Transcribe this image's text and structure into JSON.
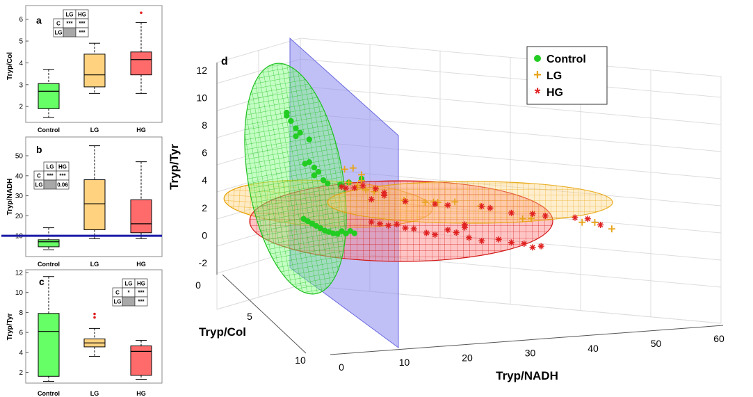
{
  "colors": {
    "control": "#66ff66",
    "lg": "#ffd27f",
    "hg": "#ff6b6b",
    "control_marker": "#22cc22",
    "lg_marker": "#e8a317",
    "hg_marker": "#e02020",
    "threshold": "#1a1aa8",
    "plane": "#8c8cf0"
  },
  "chart_data": [
    {
      "panel": "a",
      "type": "box",
      "categories": [
        "Control",
        "LG",
        "HG"
      ],
      "ylabel": "Tryp/Col",
      "ylim": [
        1.4,
        6.5
      ],
      "yticks": [
        "2",
        "3",
        "4",
        "5",
        "6"
      ],
      "ytick_values": [
        2,
        3,
        4,
        5,
        6
      ],
      "boxes": [
        {
          "name": "Control",
          "min": 1.5,
          "q1": 1.9,
          "median": 2.7,
          "q3": 3.05,
          "max": 3.7,
          "outliers": []
        },
        {
          "name": "LG",
          "min": 2.6,
          "q1": 2.9,
          "median": 3.45,
          "q3": 4.4,
          "max": 4.9,
          "outliers": []
        },
        {
          "name": "HG",
          "min": 2.6,
          "q1": 3.45,
          "median": 4.15,
          "q3": 4.5,
          "max": 5.85,
          "outliers": [
            6.3
          ]
        }
      ],
      "sig_table": {
        "cols": [
          "LG",
          "HG"
        ],
        "rows": [
          {
            "label": "C",
            "cells": [
              "***",
              "***"
            ]
          },
          {
            "label": "LG",
            "cells": [
              "",
              "***"
            ]
          }
        ]
      }
    },
    {
      "panel": "b",
      "type": "box",
      "categories": [
        "Control",
        "LG",
        "HG"
      ],
      "ylabel": "Tryp/NADH",
      "ylim": [
        1,
        58
      ],
      "yticks": [
        "10",
        "20",
        "30",
        "40",
        "50"
      ],
      "ytick_values": [
        10,
        20,
        30,
        40,
        50
      ],
      "threshold": 10,
      "boxes": [
        {
          "name": "Control",
          "min": 3,
          "q1": 4.5,
          "median": 7,
          "q3": 8,
          "max": 14,
          "outliers": []
        },
        {
          "name": "LG",
          "min": 8.5,
          "q1": 13,
          "median": 26,
          "q3": 38,
          "max": 55,
          "outliers": []
        },
        {
          "name": "HG",
          "min": 8.5,
          "q1": 11.5,
          "median": 16,
          "q3": 28,
          "max": 47,
          "outliers": []
        }
      ],
      "sig_table": {
        "cols": [
          "LG",
          "HG"
        ],
        "rows": [
          {
            "label": "C",
            "cells": [
              "***",
              "***"
            ]
          },
          {
            "label": "LG",
            "cells": [
              "",
              "0.06"
            ]
          }
        ]
      }
    },
    {
      "panel": "c",
      "type": "box",
      "categories": [
        "Control",
        "LG",
        "HG"
      ],
      "ylabel": "Tryp/Tyr",
      "ylim": [
        1.2,
        12
      ],
      "yticks": [
        "2",
        "4",
        "6",
        "8",
        "10",
        "12"
      ],
      "ytick_values": [
        2,
        4,
        6,
        8,
        10,
        12
      ],
      "boxes": [
        {
          "name": "Control",
          "min": 1.1,
          "q1": 1.6,
          "median": 6.1,
          "q3": 7.9,
          "max": 11.6,
          "outliers": []
        },
        {
          "name": "LG",
          "min": 3.6,
          "q1": 4.55,
          "median": 4.95,
          "q3": 5.35,
          "max": 6.4,
          "outliers": [
            7.5,
            7.85
          ]
        },
        {
          "name": "HG",
          "min": 1.3,
          "q1": 1.7,
          "median": 4.1,
          "q3": 4.65,
          "max": 5.2,
          "outliers": []
        }
      ],
      "sig_table": {
        "cols": [
          "LG",
          "HG"
        ],
        "rows": [
          {
            "label": "C",
            "cells": [
              "*",
              "***"
            ]
          },
          {
            "label": "LG",
            "cells": [
              "",
              "***"
            ]
          }
        ]
      }
    },
    {
      "panel": "d",
      "type": "scatter3d",
      "xlabel": "Tryp/NADH",
      "ylabel": "Tryp/Col",
      "zlabel": "Tryp/Tyr",
      "xticks": [
        "0",
        "10",
        "20",
        "30",
        "40",
        "50",
        "60"
      ],
      "xtick_values": [
        0,
        10,
        20,
        30,
        40,
        50,
        60
      ],
      "yticks": [
        "0",
        "5",
        "10"
      ],
      "ytick_values": [
        0,
        5,
        10
      ],
      "zticks": [
        "-2",
        "0",
        "2",
        "4",
        "6",
        "8",
        "10",
        "12"
      ],
      "ztick_values": [
        -2,
        0,
        2,
        4,
        6,
        8,
        10,
        12
      ],
      "legend": {
        "position": "top-right",
        "entries": [
          "Control",
          "LG",
          "HG"
        ],
        "markers": [
          "●",
          "+",
          "*"
        ]
      },
      "threshold_plane_x": 10,
      "series": [
        {
          "name": "Control",
          "marker": "circle",
          "points": [
            [
              3,
              2,
              10.6
            ],
            [
              3,
              2,
              10.3
            ],
            [
              4,
              2,
              9.8
            ],
            [
              5,
              2.5,
              9.2
            ],
            [
              6,
              2.5,
              8.8
            ],
            [
              5,
              2.5,
              8.4
            ],
            [
              8,
              3,
              8.3
            ],
            [
              8,
              3,
              6
            ],
            [
              7,
              3,
              5.8
            ],
            [
              9,
              3.5,
              5.6
            ],
            [
              10,
              3.5,
              5.2
            ],
            [
              9,
              3.5,
              4.8
            ],
            [
              11,
              4,
              4.5
            ],
            [
              12,
              4,
              4.2
            ],
            [
              15,
              4,
              4.2
            ],
            [
              17,
              4,
              4.5
            ],
            [
              20,
              4,
              5
            ],
            [
              6,
              5,
              0.6
            ],
            [
              7,
              5,
              0.4
            ],
            [
              8,
              5,
              0.2
            ],
            [
              9,
              5,
              0
            ],
            [
              10,
              5,
              -0.2
            ],
            [
              11,
              5,
              -0.4
            ],
            [
              12,
              5,
              -0.5
            ],
            [
              13,
              5,
              -0.6
            ],
            [
              14,
              5,
              -0.6
            ],
            [
              15,
              5,
              -0.3
            ],
            [
              16,
              5,
              -0.5
            ],
            [
              17,
              5,
              -0.2
            ],
            [
              18,
              5,
              -0.4
            ]
          ]
        },
        {
          "name": "LG",
          "marker": "plus",
          "points": [
            [
              18,
              4,
              6
            ],
            [
              16,
              4,
              5.8
            ],
            [
              20,
              4,
              5.4
            ],
            [
              20,
              4,
              4.8
            ],
            [
              17,
              4,
              4.5
            ],
            [
              19,
              4,
              4.3
            ],
            [
              19,
              4,
              4.1
            ],
            [
              21,
              4,
              3.9
            ],
            [
              23,
              4,
              3.8
            ],
            [
              30,
              4,
              3.2
            ],
            [
              35,
              4,
              3.2
            ],
            [
              37,
              4,
              3.3
            ],
            [
              38,
              4,
              3.3
            ],
            [
              42,
              4,
              3.5
            ],
            [
              48,
              4,
              3.3
            ],
            [
              58,
              4,
              2.4
            ],
            [
              60,
              4,
              2.5
            ],
            [
              72,
              4,
              2.6
            ],
            [
              75,
              4,
              2.7
            ],
            [
              79,
              4,
              2.2
            ]
          ]
        },
        {
          "name": "HG",
          "marker": "star",
          "points": [
            [
              15,
              5,
              4.2
            ],
            [
              16,
              5,
              4.1
            ],
            [
              18,
              5,
              4.2
            ],
            [
              20,
              5,
              4.5
            ],
            [
              23,
              5,
              4.3
            ],
            [
              25,
              5,
              4
            ],
            [
              25,
              5,
              3.7
            ],
            [
              22,
              5,
              3.2
            ],
            [
              30,
              5,
              3.3
            ],
            [
              37,
              5,
              3.3
            ],
            [
              40,
              5,
              3.3
            ],
            [
              48,
              5,
              3.5
            ],
            [
              50,
              5,
              3.4
            ],
            [
              55,
              5,
              3.1
            ],
            [
              60,
              5,
              3.2
            ],
            [
              63,
              5,
              3.1
            ],
            [
              70,
              5,
              3.2
            ],
            [
              73,
              5,
              3.2
            ],
            [
              76,
              5,
              2.7
            ],
            [
              44,
              5,
              1.5
            ],
            [
              44,
              5,
              1.2
            ],
            [
              22,
              5,
              0.9
            ],
            [
              24,
              5,
              0.8
            ],
            [
              26,
              5,
              0.7
            ],
            [
              28,
              5,
              0.9
            ],
            [
              30,
              5,
              0.6
            ],
            [
              32,
              5,
              0.6
            ],
            [
              35,
              5,
              0.3
            ],
            [
              37,
              5,
              0.2
            ],
            [
              40,
              5,
              0.8
            ],
            [
              42,
              5,
              0.6
            ],
            [
              45,
              5,
              0.2
            ],
            [
              48,
              5,
              0
            ],
            [
              52,
              5,
              0.3
            ],
            [
              55,
              5,
              0.1
            ],
            [
              58,
              5,
              0.1
            ],
            [
              60,
              5,
              -0.2
            ],
            [
              62,
              5,
              0
            ]
          ]
        }
      ]
    }
  ]
}
